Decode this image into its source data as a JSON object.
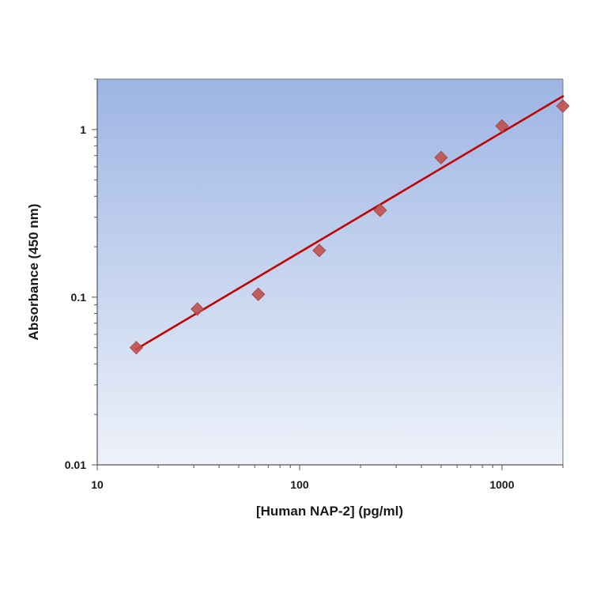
{
  "chart_data": {
    "type": "scatter",
    "title": "",
    "xlabel": "[Human NAP-2] (pg/ml)",
    "ylabel": "Absorbance (450 nm)",
    "x_scale": "log",
    "y_scale": "log",
    "xlim": [
      10,
      2000
    ],
    "ylim": [
      0.01,
      2
    ],
    "x_ticks": [
      {
        "value": 10,
        "label": "10"
      },
      {
        "value": 100,
        "label": "100"
      },
      {
        "value": 1000,
        "label": "1000"
      }
    ],
    "y_ticks": [
      {
        "value": 0.01,
        "label": "0.01"
      },
      {
        "value": 0.1,
        "label": "0.1"
      },
      {
        "value": 1,
        "label": "1"
      }
    ],
    "grid": false,
    "legend": "none",
    "series": [
      {
        "x": [
          15.6,
          31.25,
          62.5,
          125,
          250,
          500,
          1000,
          2000
        ],
        "y": [
          0.05,
          0.085,
          0.104,
          0.19,
          0.33,
          0.68,
          1.05,
          1.38
        ],
        "marker": "diamond",
        "color": "#c0504d"
      }
    ],
    "fit_line": {
      "type": "power",
      "x": [
        15.6,
        2000
      ],
      "y": [
        0.049,
        1.58
      ],
      "color": "#c00000"
    },
    "background_gradient": [
      "#9db5e4",
      "#eef2fa"
    ]
  }
}
